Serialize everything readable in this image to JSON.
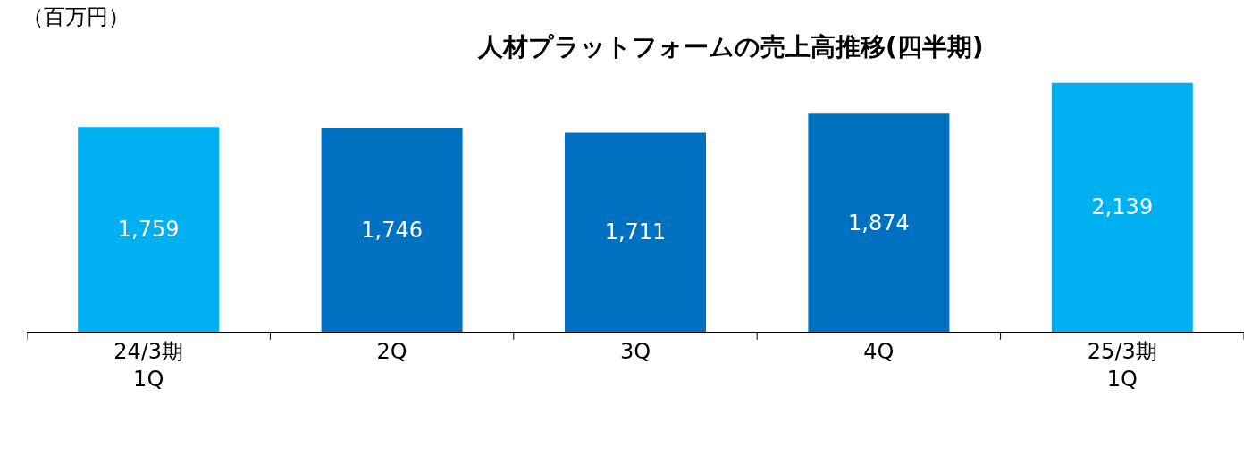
{
  "chart_data": {
    "type": "bar",
    "title": "人材プラットフォームの売上高推移(四半期)",
    "ylabel": "（百万円）",
    "categories": [
      "24/3期\n1Q",
      "2Q",
      "3Q",
      "4Q",
      "25/3期\n1Q"
    ],
    "values": [
      1759,
      1746,
      1711,
      1874,
      2139
    ],
    "value_labels": [
      "1,759",
      "1,746",
      "1,711",
      "1,874",
      "2,139"
    ],
    "colors": [
      "#00b0f0",
      "#0070c0",
      "#0070c0",
      "#0070c0",
      "#00b0f0"
    ],
    "tick_labels": "x"
  }
}
